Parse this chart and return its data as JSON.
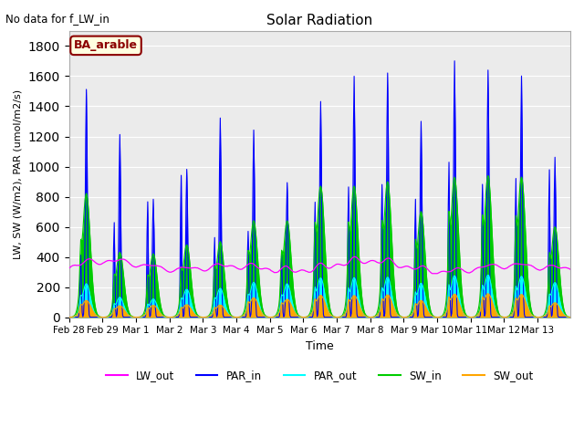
{
  "title": "Solar Radiation",
  "subtitle": "No data for f_LW_in",
  "xlabel": "Time",
  "ylabel": "LW, SW (W/m2), PAR (umol/m2/s)",
  "legend_label": "BA_arable",
  "legend_color": "#8B0000",
  "legend_bg": "#FFFFE0",
  "ylim": [
    0,
    1900
  ],
  "yticks": [
    0,
    200,
    400,
    600,
    800,
    1000,
    1200,
    1400,
    1600,
    1800
  ],
  "plot_bg": "#EBEBEB",
  "line_colors": {
    "LW_out": "#FF00FF",
    "PAR_in": "#0000FF",
    "PAR_out": "#00FFFF",
    "SW_in": "#00CC00",
    "SW_out": "#FFA500"
  },
  "PAR_in_peak1": [
    1510,
    1210,
    780,
    980,
    1320,
    1240,
    890,
    1430,
    1600,
    1620,
    1300,
    1700,
    1640,
    1600,
    1060
  ],
  "PAR_in_peak2": [
    420,
    640,
    780,
    960,
    540,
    580,
    430,
    780,
    880,
    900,
    800,
    1050,
    900,
    940,
    1000
  ],
  "SW_in_peak1": [
    820,
    430,
    420,
    480,
    500,
    640,
    640,
    870,
    870,
    900,
    700,
    930,
    940,
    930,
    600
  ],
  "SW_in_peak2": [
    200,
    120,
    120,
    150,
    150,
    200,
    200,
    300,
    300,
    300,
    250,
    350,
    320,
    320,
    200
  ],
  "PAR_out_peak1": [
    220,
    130,
    120,
    185,
    190,
    230,
    220,
    260,
    260,
    265,
    225,
    275,
    280,
    270,
    230
  ],
  "PAR_out_peak2": [
    60,
    40,
    40,
    55,
    55,
    65,
    65,
    100,
    95,
    95,
    80,
    110,
    105,
    100,
    65
  ],
  "SW_out_peak1": [
    110,
    75,
    78,
    82,
    80,
    128,
    118,
    145,
    143,
    148,
    110,
    153,
    155,
    150,
    95
  ],
  "SW_out_peak2": [
    30,
    20,
    20,
    25,
    25,
    40,
    38,
    50,
    48,
    50,
    35,
    60,
    58,
    55,
    30
  ],
  "LW_base": 325,
  "LW_amplitude": 75,
  "figsize": [
    6.4,
    4.8
  ],
  "dpi": 100
}
